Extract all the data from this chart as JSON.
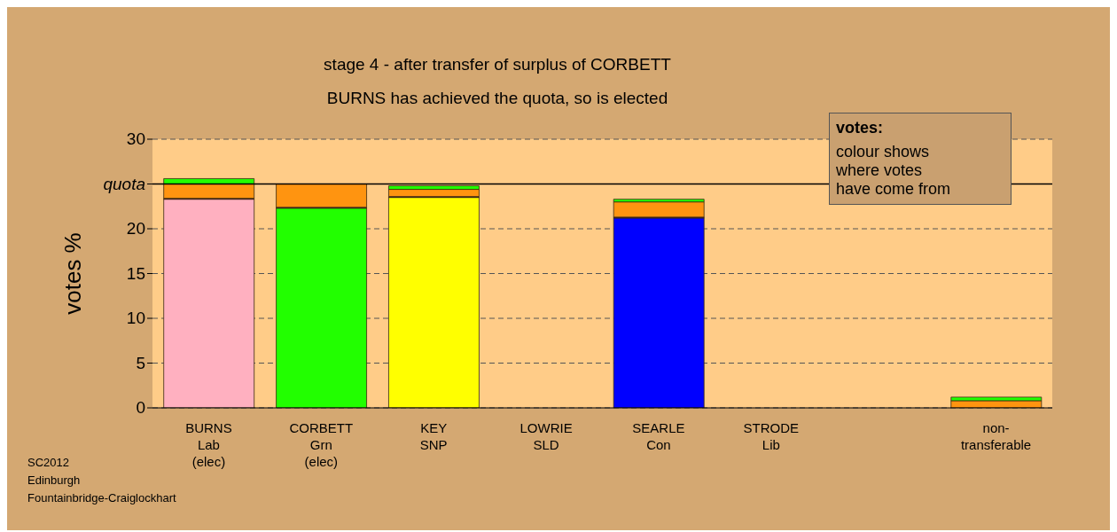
{
  "chart_data": {
    "type": "bar",
    "title": "stage 4 - after transfer of surplus of CORBETT",
    "subtitle": "BURNS has achieved the quota, so is elected",
    "ylabel": "votes %",
    "categories": [
      "BURNS\nLab\n(elec)",
      "CORBETT\nGrn\n(elec)",
      "KEY\nSNP",
      "LOWRIE\nSLD",
      "SEARLE\nCon",
      "STRODE\nLib",
      null,
      "non-\ntransferable"
    ],
    "stacked": true,
    "series": [
      {
        "color": "#ffb0c0",
        "values": [
          23.3,
          null,
          null,
          null,
          null,
          null,
          null,
          null
        ]
      },
      {
        "color": "#22ff00",
        "values": [
          null,
          22.3,
          null,
          null,
          null,
          null,
          null,
          null
        ]
      },
      {
        "color": "#ffff00",
        "values": [
          null,
          null,
          23.5,
          null,
          null,
          null,
          null,
          null
        ]
      },
      {
        "color": "#0000ff",
        "values": [
          null,
          null,
          null,
          null,
          21.2,
          null,
          null,
          null
        ]
      },
      {
        "color": "#4a1040",
        "values": [
          0.1,
          0.1,
          0.1,
          null,
          0.1,
          null,
          null,
          null
        ]
      },
      {
        "color": "#ff9410",
        "values": [
          1.6,
          2.6,
          0.8,
          null,
          1.7,
          null,
          null,
          0.8
        ]
      },
      {
        "color": "#22ff00",
        "values": [
          0.6,
          null,
          0.4,
          null,
          0.3,
          null,
          null,
          0.4
        ]
      }
    ],
    "ylim": [
      0,
      30
    ],
    "yticks": [
      0,
      5,
      10,
      15,
      20,
      {
        "value": 25,
        "label": "quota"
      },
      30
    ],
    "ref_lines": [
      {
        "axis": "y",
        "value": 25,
        "color": "#000000",
        "line_style": "solid"
      }
    ],
    "grid": "y",
    "legend": false,
    "annotations": [
      "votes:\ncolour shows\nwhere votes\nhave come from",
      "SC2012\nEdinburgh\nFountainbridge-Craiglockhart"
    ]
  }
}
